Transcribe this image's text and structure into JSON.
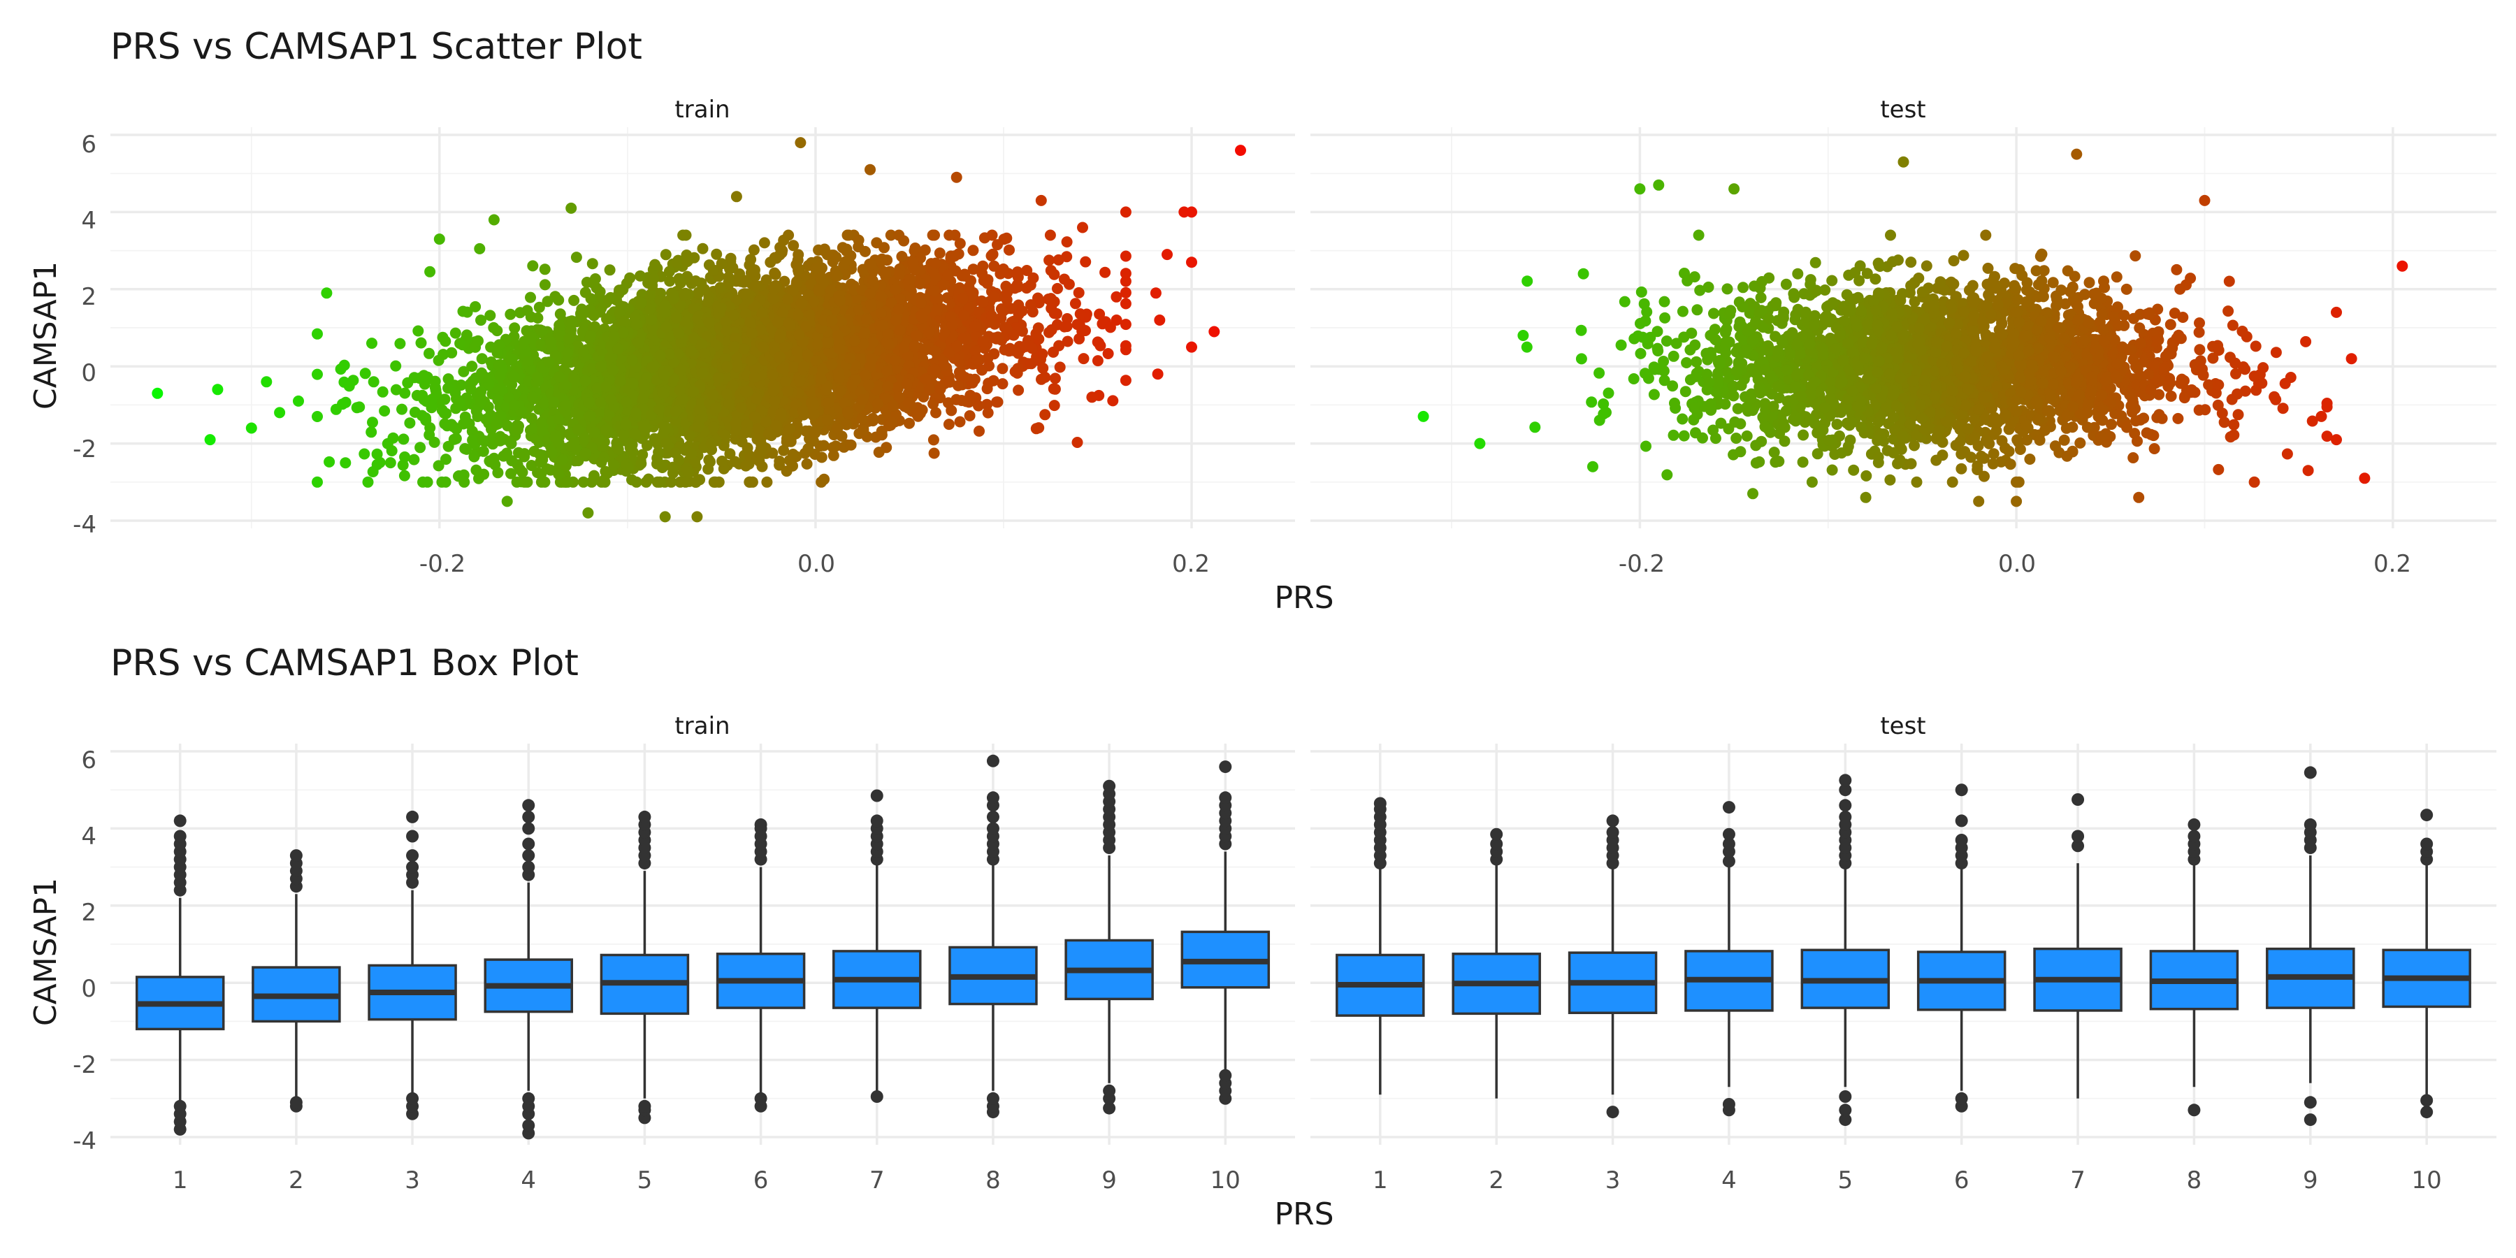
{
  "chart_data": [
    {
      "type": "scatter",
      "title": "PRS vs CAMSAP1 Scatter Plot",
      "xlabel": "PRS",
      "ylabel": "CAMSAP1",
      "xlim": [
        -0.375,
        0.255
      ],
      "ylim": [
        -4.2,
        6.2
      ],
      "x_ticks": [
        -0.2,
        0.0,
        0.2
      ],
      "x_tick_labels": [
        "-0.2",
        "0.0",
        "0.2"
      ],
      "y_ticks": [
        -4,
        -2,
        0,
        2,
        4,
        6
      ],
      "y_tick_labels": [
        "-4",
        "-2",
        "0",
        "2",
        "4",
        "6"
      ],
      "grid": true,
      "color_scale": {
        "low": "#00ff00",
        "high": "#ff0000"
      },
      "panels": [
        {
          "name": "train",
          "cloud": {
            "x_center": -0.04,
            "x_sd": 0.07,
            "y_center": 0.1,
            "y_sd": 1.1,
            "slope": 7.0,
            "n": 6000
          },
          "outliers": [
            {
              "x": -0.35,
              "y": -0.7
            },
            {
              "x": -0.322,
              "y": -1.9
            },
            {
              "x": -0.318,
              "y": -0.6
            },
            {
              "x": -0.3,
              "y": -1.6
            },
            {
              "x": -0.292,
              "y": -0.4
            },
            {
              "x": -0.285,
              "y": -1.2
            },
            {
              "x": -0.275,
              "y": -0.9
            },
            {
              "x": -0.26,
              "y": 1.9
            },
            {
              "x": -0.25,
              "y": -2.5
            },
            {
              "x": -0.235,
              "y": -0.4
            },
            {
              "x": -0.236,
              "y": 0.6
            },
            {
              "x": -0.2,
              "y": 3.3
            },
            {
              "x": -0.164,
              "y": -3.5
            },
            {
              "x": -0.171,
              "y": 3.8
            },
            {
              "x": -0.13,
              "y": 4.1
            },
            {
              "x": -0.121,
              "y": -3.8
            },
            {
              "x": -0.08,
              "y": -3.9
            },
            {
              "x": -0.063,
              "y": -3.9
            },
            {
              "x": -0.042,
              "y": 4.4
            },
            {
              "x": -0.008,
              "y": 5.8
            },
            {
              "x": 0.029,
              "y": 5.1
            },
            {
              "x": 0.075,
              "y": 4.9
            },
            {
              "x": 0.12,
              "y": 4.3
            },
            {
              "x": 0.142,
              "y": 3.6
            },
            {
              "x": 0.147,
              "y": -0.8
            },
            {
              "x": 0.16,
              "y": 1.8
            },
            {
              "x": 0.165,
              "y": 4.0
            },
            {
              "x": 0.181,
              "y": 1.9
            },
            {
              "x": 0.182,
              "y": -0.2
            },
            {
              "x": 0.183,
              "y": 1.2
            },
            {
              "x": 0.187,
              "y": 2.9
            },
            {
              "x": 0.196,
              "y": 4.0
            },
            {
              "x": 0.2,
              "y": 4.0
            },
            {
              "x": 0.2,
              "y": 2.7
            },
            {
              "x": 0.2,
              "y": 0.5
            },
            {
              "x": 0.212,
              "y": 0.9
            },
            {
              "x": 0.226,
              "y": 5.6
            }
          ]
        },
        {
          "name": "test",
          "cloud": {
            "x_center": -0.04,
            "x_sd": 0.065,
            "y_center": 0.0,
            "y_sd": 1.05,
            "slope": 0.0,
            "n": 2800
          },
          "outliers": [
            {
              "x": -0.315,
              "y": -1.3
            },
            {
              "x": -0.285,
              "y": -2.0
            },
            {
              "x": -0.262,
              "y": 0.8
            },
            {
              "x": -0.26,
              "y": 0.5
            },
            {
              "x": -0.23,
              "y": 2.4
            },
            {
              "x": -0.225,
              "y": -2.6
            },
            {
              "x": -0.2,
              "y": 4.6
            },
            {
              "x": -0.19,
              "y": 4.7
            },
            {
              "x": -0.15,
              "y": 4.6
            },
            {
              "x": -0.14,
              "y": -3.3
            },
            {
              "x": -0.08,
              "y": -3.4
            },
            {
              "x": -0.06,
              "y": 5.3
            },
            {
              "x": -0.02,
              "y": -3.5
            },
            {
              "x": 0.0,
              "y": -3.5
            },
            {
              "x": 0.032,
              "y": 5.5
            },
            {
              "x": 0.065,
              "y": -3.4
            },
            {
              "x": 0.1,
              "y": 4.3
            },
            {
              "x": 0.155,
              "y": -2.7
            },
            {
              "x": 0.162,
              "y": -1.3
            },
            {
              "x": 0.17,
              "y": 1.4
            },
            {
              "x": 0.17,
              "y": -1.9
            },
            {
              "x": 0.178,
              "y": 0.2
            },
            {
              "x": 0.185,
              "y": -2.9
            },
            {
              "x": 0.205,
              "y": 2.6
            }
          ]
        }
      ]
    },
    {
      "type": "box",
      "title": "PRS vs CAMSAP1 Box Plot",
      "xlabel": "PRS",
      "ylabel": "CAMSAP1",
      "categories": [
        "1",
        "2",
        "3",
        "4",
        "5",
        "6",
        "7",
        "8",
        "9",
        "10"
      ],
      "ylim": [
        -4.2,
        6.2
      ],
      "y_ticks": [
        -4,
        -2,
        0,
        2,
        4,
        6
      ],
      "y_tick_labels": [
        "-4",
        "-2",
        "0",
        "2",
        "4",
        "6"
      ],
      "grid": true,
      "box_color": "#1e90ff",
      "panels": [
        {
          "name": "train",
          "boxes": [
            {
              "q1": -1.2,
              "median": -0.55,
              "q3": 0.15,
              "whisker_low": -3.1,
              "whisker_high": 2.2,
              "outliers": [
                -3.8,
                -3.6,
                -3.4,
                -3.2,
                2.4,
                2.6,
                2.8,
                3.0,
                3.2,
                3.4,
                3.6,
                3.8,
                4.2
              ]
            },
            {
              "q1": -1.0,
              "median": -0.35,
              "q3": 0.4,
              "whisker_low": -3.0,
              "whisker_high": 2.3,
              "outliers": [
                -3.2,
                -3.1,
                2.5,
                2.7,
                2.9,
                3.1,
                3.3
              ]
            },
            {
              "q1": -0.95,
              "median": -0.25,
              "q3": 0.45,
              "whisker_low": -2.9,
              "whisker_high": 2.4,
              "outliers": [
                -3.4,
                -3.2,
                -3.0,
                2.6,
                2.8,
                3.0,
                3.3,
                3.8,
                4.3
              ]
            },
            {
              "q1": -0.75,
              "median": -0.08,
              "q3": 0.6,
              "whisker_low": -2.8,
              "whisker_high": 2.6,
              "outliers": [
                -3.9,
                -3.7,
                -3.4,
                -3.2,
                -3.0,
                2.8,
                3.0,
                3.3,
                3.6,
                4.0,
                4.3,
                4.6
              ]
            },
            {
              "q1": -0.8,
              "median": 0.0,
              "q3": 0.72,
              "whisker_low": -3.0,
              "whisker_high": 2.9,
              "outliers": [
                -3.5,
                -3.3,
                -3.2,
                3.1,
                3.3,
                3.5,
                3.7,
                3.9,
                4.1,
                4.3
              ]
            },
            {
              "q1": -0.65,
              "median": 0.05,
              "q3": 0.75,
              "whisker_low": -2.9,
              "whisker_high": 3.0,
              "outliers": [
                -3.2,
                -3.0,
                3.2,
                3.4,
                3.6,
                3.8,
                4.0,
                4.1
              ]
            },
            {
              "q1": -0.65,
              "median": 0.08,
              "q3": 0.82,
              "whisker_low": -2.9,
              "whisker_high": 3.1,
              "outliers": [
                -2.95,
                3.2,
                3.4,
                3.6,
                3.8,
                4.0,
                4.2,
                4.85
              ]
            },
            {
              "q1": -0.55,
              "median": 0.15,
              "q3": 0.92,
              "whisker_low": -2.8,
              "whisker_high": 3.1,
              "outliers": [
                -3.35,
                -3.2,
                -3.0,
                3.2,
                3.4,
                3.6,
                3.8,
                4.0,
                4.3,
                4.6,
                4.8,
                5.75
              ]
            },
            {
              "q1": -0.42,
              "median": 0.32,
              "q3": 1.1,
              "whisker_low": -2.6,
              "whisker_high": 3.3,
              "outliers": [
                -3.25,
                -3.0,
                -2.8,
                3.5,
                3.7,
                3.9,
                4.1,
                4.3,
                4.5,
                4.7,
                4.9,
                5.1
              ]
            },
            {
              "q1": -0.12,
              "median": 0.55,
              "q3": 1.32,
              "whisker_low": -2.3,
              "whisker_high": 3.4,
              "outliers": [
                -3.0,
                -2.8,
                -2.6,
                -2.4,
                3.6,
                3.8,
                4.0,
                4.2,
                4.4,
                4.6,
                4.8,
                5.6
              ]
            }
          ]
        },
        {
          "name": "test",
          "boxes": [
            {
              "q1": -0.85,
              "median": -0.05,
              "q3": 0.72,
              "whisker_low": -2.9,
              "whisker_high": 3.0,
              "outliers": [
                3.1,
                3.3,
                3.5,
                3.7,
                3.9,
                4.1,
                4.3,
                4.5,
                4.65
              ]
            },
            {
              "q1": -0.8,
              "median": -0.02,
              "q3": 0.75,
              "whisker_low": -3.0,
              "whisker_high": 3.1,
              "outliers": [
                3.2,
                3.4,
                3.6,
                3.85
              ]
            },
            {
              "q1": -0.78,
              "median": 0.0,
              "q3": 0.78,
              "whisker_low": -2.9,
              "whisker_high": 2.95,
              "outliers": [
                -3.35,
                3.1,
                3.3,
                3.5,
                3.7,
                3.9,
                4.2
              ]
            },
            {
              "q1": -0.72,
              "median": 0.08,
              "q3": 0.82,
              "whisker_low": -2.7,
              "whisker_high": 3.05,
              "outliers": [
                -3.3,
                -3.15,
                3.15,
                3.4,
                3.6,
                3.85,
                4.55
              ]
            },
            {
              "q1": -0.65,
              "median": 0.05,
              "q3": 0.85,
              "whisker_low": -2.7,
              "whisker_high": 3.0,
              "outliers": [
                -3.55,
                -3.3,
                -2.95,
                3.1,
                3.3,
                3.5,
                3.7,
                3.9,
                4.1,
                4.3,
                4.6,
                5.0,
                5.25
              ]
            },
            {
              "q1": -0.7,
              "median": 0.05,
              "q3": 0.8,
              "whisker_low": -2.8,
              "whisker_high": 3.0,
              "outliers": [
                -3.2,
                -3.0,
                3.1,
                3.3,
                3.5,
                3.7,
                4.2,
                5.0
              ]
            },
            {
              "q1": -0.72,
              "median": 0.08,
              "q3": 0.88,
              "whisker_low": -3.0,
              "whisker_high": 3.1,
              "outliers": [
                3.55,
                3.8,
                4.75
              ]
            },
            {
              "q1": -0.68,
              "median": 0.04,
              "q3": 0.82,
              "whisker_low": -2.7,
              "whisker_high": 3.1,
              "outliers": [
                -3.3,
                3.2,
                3.4,
                3.6,
                3.8,
                4.1
              ]
            },
            {
              "q1": -0.65,
              "median": 0.15,
              "q3": 0.88,
              "whisker_low": -2.6,
              "whisker_high": 3.3,
              "outliers": [
                -3.55,
                -3.1,
                3.5,
                3.7,
                3.9,
                4.1,
                5.45
              ]
            },
            {
              "q1": -0.62,
              "median": 0.12,
              "q3": 0.85,
              "whisker_low": -2.95,
              "whisker_high": 3.1,
              "outliers": [
                -3.35,
                -3.05,
                3.2,
                3.4,
                3.6,
                4.35
              ]
            }
          ]
        }
      ]
    }
  ]
}
